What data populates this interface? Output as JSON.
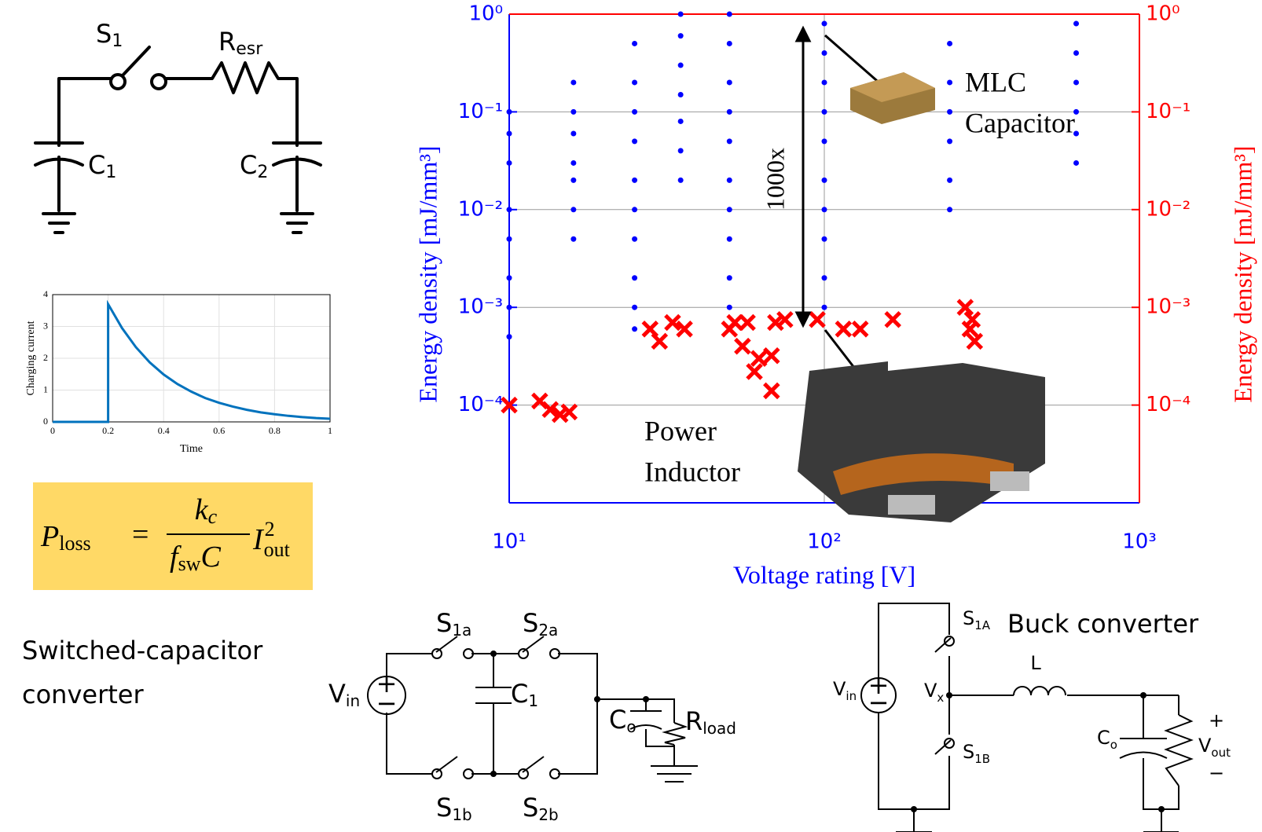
{
  "rc_circuit": {
    "labels": [
      {
        "base": "S",
        "sub": "1"
      },
      {
        "base": "R",
        "sub": "esr"
      },
      {
        "base": "C",
        "sub": "1"
      },
      {
        "base": "C",
        "sub": "2"
      }
    ]
  },
  "chart_data": [
    {
      "type": "line",
      "xlabel": "Time",
      "ylabel": "Charging current",
      "x": [
        0,
        0.2,
        0.2,
        0.25,
        0.3,
        0.35,
        0.4,
        0.45,
        0.5,
        0.55,
        0.6,
        0.65,
        0.7,
        0.75,
        0.8,
        0.85,
        0.9,
        0.95,
        1
      ],
      "series": [
        {
          "color": "#0072bd",
          "values": [
            0,
            0,
            3.7,
            2.95,
            2.35,
            1.87,
            1.49,
            1.19,
            0.95,
            0.75,
            0.6,
            0.48,
            0.38,
            0.3,
            0.24,
            0.19,
            0.15,
            0.12,
            0.1
          ]
        }
      ],
      "xlim": [
        0,
        1
      ],
      "ylim": [
        0,
        4
      ],
      "xticks": [
        0,
        0.2,
        0.4,
        0.6,
        0.8,
        1
      ],
      "yticks": [
        0,
        1,
        2,
        3,
        4
      ],
      "grid": true
    },
    {
      "type": "scatter",
      "log_x": true,
      "log_y": true,
      "grid": true,
      "xlabel": "Voltage rating [V]",
      "ylabel": "Energy density [mJ/mm³]",
      "y2label": "Energy density [mJ/mm³]",
      "annotations": {
        "arrow": "1000x",
        "capacitor": [
          "MLC",
          "Capacitor"
        ],
        "inductor": [
          "Power",
          "Inductor"
        ]
      },
      "xlim": [
        10,
        1000
      ],
      "ylim": [
        1e-05,
        1
      ],
      "y2lim": [
        1e-05,
        1
      ],
      "xticks": [
        {
          "value": 10,
          "label": "10¹"
        },
        {
          "value": 100,
          "label": "10²"
        },
        {
          "value": 1000,
          "label": "10³"
        }
      ],
      "yticks": [
        {
          "value": 1,
          "label": "10⁰"
        },
        {
          "value": 0.1,
          "label": "10⁻¹"
        },
        {
          "value": 0.01,
          "label": "10⁻²"
        },
        {
          "value": 0.001,
          "label": "10⁻³"
        },
        {
          "value": 0.0001,
          "label": "10⁻⁴"
        }
      ],
      "y2ticks": [
        {
          "value": 1,
          "label": "10⁰"
        },
        {
          "value": 0.1,
          "label": "10⁻¹"
        },
        {
          "value": 0.01,
          "label": "10⁻²"
        },
        {
          "value": 0.001,
          "label": "10⁻³"
        },
        {
          "value": 0.0001,
          "label": "10⁻⁴"
        }
      ],
      "left_axis_color": "#0000ff",
      "right_axis_color": "#ff0000",
      "series": [
        {
          "color": "#0000ff",
          "marker": "dot",
          "x": [
            10,
            10,
            10,
            10,
            10,
            10,
            10,
            10,
            16,
            16,
            16,
            16,
            16,
            16,
            16,
            25,
            25,
            25,
            25,
            25,
            25,
            25,
            25,
            25,
            25,
            35,
            35,
            35,
            35,
            35,
            35,
            35,
            50,
            50,
            50,
            50,
            50,
            50,
            50,
            50,
            50,
            50,
            50,
            100,
            100,
            100,
            100,
            100,
            100,
            100,
            100,
            100,
            100,
            250,
            250,
            250,
            250,
            250,
            250,
            630,
            630,
            630,
            630,
            630,
            630
          ],
          "values": [
            0.1,
            0.06,
            0.03,
            0.01,
            0.005,
            0.002,
            0.001,
            0.0005,
            0.2,
            0.1,
            0.06,
            0.03,
            0.02,
            0.01,
            0.005,
            0.5,
            0.2,
            0.1,
            0.05,
            0.02,
            0.01,
            0.005,
            0.002,
            0.001,
            0.0006,
            1,
            0.6,
            0.3,
            0.15,
            0.08,
            0.04,
            0.02,
            1,
            0.5,
            0.2,
            0.1,
            0.05,
            0.02,
            0.01,
            0.005,
            0.002,
            0.001,
            0.0006,
            0.8,
            0.4,
            0.2,
            0.1,
            0.05,
            0.02,
            0.01,
            0.005,
            0.002,
            0.001,
            0.5,
            0.2,
            0.1,
            0.05,
            0.02,
            0.01,
            0.8,
            0.4,
            0.2,
            0.1,
            0.06,
            0.03
          ]
        },
        {
          "color": "#ff0000",
          "marker": "x",
          "x": [
            10,
            12.5,
            13.5,
            14.5,
            15.5,
            28,
            30,
            33,
            36,
            50,
            52,
            55,
            57,
            60,
            62,
            68,
            68,
            70,
            75,
            95,
            115,
            130,
            165,
            280,
            290,
            295,
            300
          ],
          "values": [
            0.0001,
            0.00011,
            9e-05,
            8e-05,
            8.5e-05,
            0.0006,
            0.00045,
            0.0007,
            0.0006,
            0.0006,
            0.0007,
            0.0004,
            0.0007,
            0.00022,
            0.0003,
            0.00032,
            0.00014,
            0.0007,
            0.00075,
            0.00075,
            0.0006,
            0.0006,
            0.00075,
            0.001,
            0.0006,
            0.00075,
            0.00045
          ]
        }
      ]
    }
  ],
  "formula": {
    "lhs": "P",
    "lhs_sub": "loss",
    "equals": "=",
    "num": "k",
    "num_sub": "c",
    "den": "f",
    "den_sub": "sw",
    "den_tail": "C",
    "rhs": "I",
    "rhs_sub": "out",
    "rhs_sup": "2"
  },
  "sc_converter": {
    "title": [
      "Switched-capacitor",
      "converter"
    ],
    "labels": [
      {
        "base": "S",
        "sub": "1a"
      },
      {
        "base": "S",
        "sub": "2a"
      },
      {
        "base": "S",
        "sub": "1b"
      },
      {
        "base": "S",
        "sub": "2b"
      },
      {
        "base": "C",
        "sub": "1"
      },
      {
        "base": "V",
        "sub": "in"
      },
      {
        "base": "C",
        "sub": "o"
      },
      {
        "base": "R",
        "sub": "load"
      }
    ],
    "polarity": [
      "+",
      "−"
    ]
  },
  "buck_converter": {
    "title": "Buck converter",
    "labels": [
      {
        "base": "V",
        "sub": "in"
      },
      {
        "base": "S",
        "sub": "1A"
      },
      {
        "base": "S",
        "sub": "1B"
      },
      {
        "base": "V",
        "sub": "x"
      },
      {
        "base": "C",
        "sub": "o"
      },
      {
        "base": "V",
        "sub": "out"
      }
    ],
    "inductor": "L",
    "polarity": [
      "+",
      "−"
    ],
    "out_polarity": [
      "+",
      "−"
    ]
  }
}
